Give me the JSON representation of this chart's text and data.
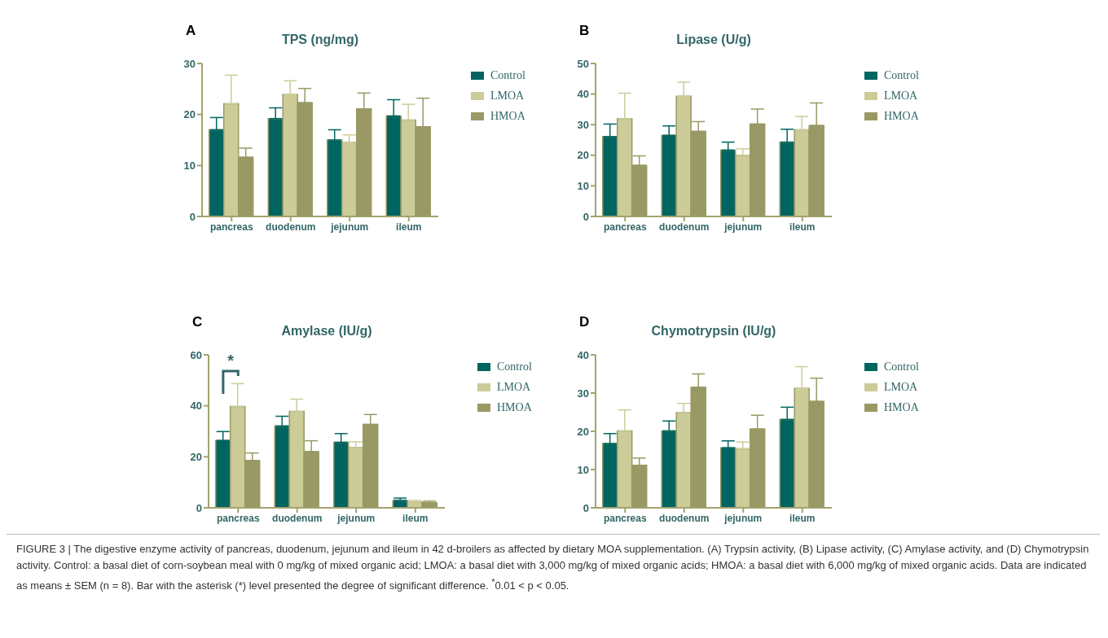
{
  "chart_data": [
    {
      "type": "bar",
      "title": "TPS (ng/mg)",
      "categories": [
        "pancreas",
        "duodenum",
        "jejunum",
        "ileum"
      ],
      "ylim": [
        0,
        30
      ],
      "yticks": [
        0,
        10,
        20,
        30
      ],
      "legend": "top right",
      "annotations": [
        "A"
      ],
      "series": [
        {
          "name": "Control",
          "color": "#006560",
          "values": [
            17.0,
            19.2,
            15.0,
            19.7
          ],
          "errors": [
            [
              17.0,
              19.4
            ],
            [
              19.2,
              21.3
            ],
            [
              15.0,
              17.0
            ],
            [
              19.7,
              22.9
            ]
          ]
        },
        {
          "name": "LMOA",
          "color": "#cccc99",
          "values": [
            22.1,
            23.9,
            14.5,
            18.9
          ],
          "errors": [
            [
              22.1,
              27.7
            ],
            [
              23.9,
              26.6
            ],
            [
              14.5,
              16.0
            ],
            [
              18.9,
              22.0
            ]
          ]
        },
        {
          "name": "HMOA",
          "color": "#999966",
          "values": [
            11.6,
            22.3,
            21.1,
            17.6
          ],
          "errors": [
            [
              11.6,
              13.4
            ],
            [
              22.3,
              25.1
            ],
            [
              21.1,
              24.2
            ],
            [
              17.6,
              23.2
            ]
          ]
        }
      ]
    },
    {
      "type": "bar",
      "title": "Lipase (U/g)",
      "categories": [
        "pancreas",
        "duodenum",
        "jejunum",
        "ileum"
      ],
      "ylim": [
        0,
        50
      ],
      "yticks": [
        0,
        10,
        20,
        30,
        40,
        50
      ],
      "legend": "top right",
      "annotations": [
        "B"
      ],
      "series": [
        {
          "name": "Control",
          "color": "#006560",
          "values": [
            26.1,
            26.5,
            21.7,
            24.3
          ],
          "errors": [
            [
              26.1,
              30.2
            ],
            [
              26.5,
              29.6
            ],
            [
              21.7,
              24.3
            ],
            [
              24.3,
              28.5
            ]
          ]
        },
        {
          "name": "LMOA",
          "color": "#cccc99",
          "values": [
            31.9,
            39.3,
            20.0,
            28.3
          ],
          "errors": [
            [
              31.9,
              40.3
            ],
            [
              39.3,
              43.9
            ],
            [
              20.0,
              22.1
            ],
            [
              28.3,
              32.7
            ]
          ]
        },
        {
          "name": "HMOA",
          "color": "#999966",
          "values": [
            16.7,
            27.8,
            30.2,
            29.7
          ],
          "errors": [
            [
              16.7,
              19.8
            ],
            [
              27.8,
              31.0
            ],
            [
              30.2,
              35.1
            ],
            [
              29.7,
              37.1
            ]
          ]
        }
      ]
    },
    {
      "type": "bar",
      "title": "Amylase (IU/g)",
      "categories": [
        "pancreas",
        "duodenum",
        "jejunum",
        "ileum"
      ],
      "ylim": [
        0,
        60
      ],
      "yticks": [
        0,
        20,
        40,
        60
      ],
      "legend": "top right",
      "annotations": [
        "C",
        "*"
      ],
      "series": [
        {
          "name": "Control",
          "color": "#006560",
          "values": [
            26.4,
            32.1,
            25.7,
            2.9
          ],
          "errors": [
            [
              26.4,
              29.9
            ],
            [
              32.1,
              35.9
            ],
            [
              25.7,
              29.1
            ],
            [
              2.9,
              3.8
            ]
          ]
        },
        {
          "name": "LMOA",
          "color": "#cccc99",
          "values": [
            39.7,
            37.8,
            23.6,
            2.3
          ],
          "errors": [
            [
              39.7,
              48.7
            ],
            [
              37.8,
              42.6
            ],
            [
              23.6,
              25.9
            ],
            [
              2.3,
              2.9
            ]
          ]
        },
        {
          "name": "HMOA",
          "color": "#999966",
          "values": [
            18.5,
            22.0,
            32.7,
            2.0
          ],
          "errors": [
            [
              18.5,
              21.5
            ],
            [
              22.0,
              26.3
            ],
            [
              32.7,
              36.6
            ],
            [
              2.0,
              2.6
            ]
          ]
        }
      ]
    },
    {
      "type": "bar",
      "title": "Chymotrypsin (IU/g)",
      "categories": [
        "pancreas",
        "duodenum",
        "jejunum",
        "ileum"
      ],
      "ylim": [
        0,
        40
      ],
      "yticks": [
        0,
        10,
        20,
        30,
        40
      ],
      "legend": "top right",
      "annotations": [
        "D",
        "FIGURE 3 | The digestive enzyme activity of pancreas, duodenum, jejunum and ileum in 42 d-broilers as affected by dietary MOA supplementation. (A) Trypsin activity, (B) Lipase activity, (C) Amylase activity, and (D) Chymotrypsin activity. Control: a basal diet of corn-soybean meal with 0 mg/kg of mixed organic acid; LMOA: a basal diet with 3,000 mg/kg of mixed organic acids; HMOA: a basal diet with 6,000 mg/kg of mixed organic acids. Data are indicated as means ± SEM (n = 8). Bar with the asterisk (*) level presented the degree of significant difference.",
        "$^{*}$0.01 < p < 0.05."
      ],
      "series": [
        {
          "name": "Control",
          "color": "#006560",
          "values": [
            16.8,
            20.1,
            15.7,
            23.1
          ],
          "errors": [
            [
              16.8,
              19.4
            ],
            [
              20.1,
              22.7
            ],
            [
              15.7,
              17.5
            ],
            [
              23.1,
              26.3
            ]
          ]
        },
        {
          "name": "LMOA",
          "color": "#cccc99",
          "values": [
            20.1,
            24.9,
            15.4,
            31.2
          ],
          "errors": [
            [
              20.1,
              25.6
            ],
            [
              24.9,
              27.3
            ],
            [
              15.4,
              17.2
            ],
            [
              31.2,
              36.9
            ]
          ]
        },
        {
          "name": "HMOA",
          "color": "#999966",
          "values": [
            11.1,
            31.5,
            20.6,
            27.8
          ],
          "errors": [
            [
              11.1,
              13.0
            ],
            [
              31.5,
              35.0
            ],
            [
              20.6,
              24.2
            ],
            [
              27.8,
              33.9
            ]
          ]
        }
      ]
    }
  ]
}
